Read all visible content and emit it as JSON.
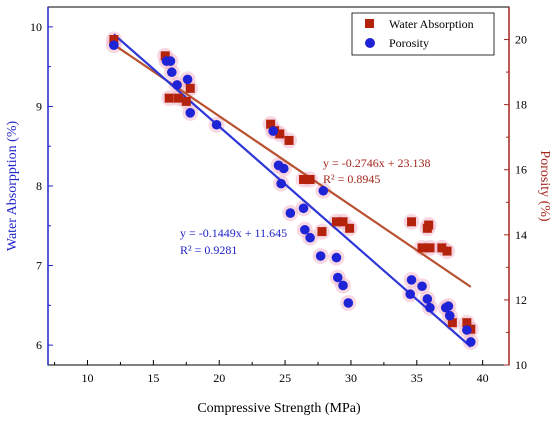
{
  "colors": {
    "water": "#b5220c",
    "porosity": "#1f23d6",
    "trend_water": "#b8512f",
    "trend_porosity": "#2e37d8",
    "halo": "#f0b8cc",
    "left_axis": "#1f23c8",
    "right_axis": "#a3261c"
  },
  "chart_data": {
    "type": "scatter",
    "xlabel": "Compressive Strength (MPa)",
    "ylabel_left": "Water Absorpption (%)",
    "ylabel_right": "Porosity (%)",
    "xlim": [
      7,
      42
    ],
    "ylim_left": [
      5.75,
      10.25
    ],
    "ylim_right": [
      10,
      21
    ],
    "x_ticks": [
      10,
      15,
      20,
      25,
      30,
      35,
      40
    ],
    "y_left_ticks": [
      6,
      7,
      8,
      9,
      10
    ],
    "y_right_ticks": [
      10,
      12,
      14,
      16,
      18,
      20
    ],
    "legend_position": "top-right",
    "series": [
      {
        "name": "Water Absorption",
        "marker": "square",
        "axis": "right",
        "x": [
          12.0,
          15.9,
          16.2,
          16.9,
          17.5,
          17.8,
          23.9,
          24.2,
          24.6,
          25.3,
          26.4,
          26.9,
          27.8,
          28.9,
          29.4,
          29.9,
          34.6,
          35.4,
          35.8,
          35.9,
          36.0,
          36.9,
          37.3,
          37.7,
          38.8,
          39.1
        ],
        "y": [
          20.0,
          19.5,
          18.2,
          18.2,
          18.1,
          18.5,
          17.4,
          17.2,
          17.1,
          16.9,
          15.7,
          15.7,
          14.1,
          14.4,
          14.4,
          14.2,
          14.4,
          13.6,
          14.2,
          14.3,
          13.6,
          13.6,
          13.5,
          11.3,
          11.3,
          11.1
        ]
      },
      {
        "name": "Porosity",
        "marker": "circle",
        "axis": "left",
        "x": [
          12.0,
          16.0,
          16.3,
          16.4,
          16.8,
          17.6,
          17.8,
          19.8,
          24.1,
          24.5,
          24.9,
          24.7,
          25.4,
          26.4,
          26.5,
          26.9,
          27.7,
          27.9,
          28.9,
          29.0,
          29.4,
          29.8,
          34.6,
          34.5,
          35.4,
          35.8,
          36.0,
          37.2,
          37.4,
          37.5,
          38.8,
          39.1
        ],
        "y": [
          9.77,
          9.57,
          9.57,
          9.43,
          9.27,
          9.34,
          8.92,
          8.77,
          8.69,
          8.26,
          8.22,
          8.03,
          7.66,
          7.72,
          7.45,
          7.35,
          7.12,
          7.94,
          7.1,
          6.85,
          6.75,
          6.53,
          6.82,
          6.64,
          6.74,
          6.58,
          6.47,
          6.47,
          6.49,
          6.37,
          6.19,
          6.04
        ]
      }
    ],
    "trendlines": [
      {
        "series": "Water Absorption",
        "axis": "right",
        "slope": -0.2746,
        "intercept": 23.138,
        "x_range": [
          12,
          39.1
        ]
      },
      {
        "series": "Porosity",
        "axis": "left",
        "slope": -0.1449,
        "intercept": 11.645,
        "x_range": [
          12,
          39.1
        ]
      }
    ]
  },
  "annotations": {
    "water_equation": "y = -0.2746x + 23.138",
    "water_r2": "R² = 0.8945",
    "porosity_equation": "y = -0.1449x + 11.645",
    "porosity_r2": "R² = 0.9281"
  }
}
